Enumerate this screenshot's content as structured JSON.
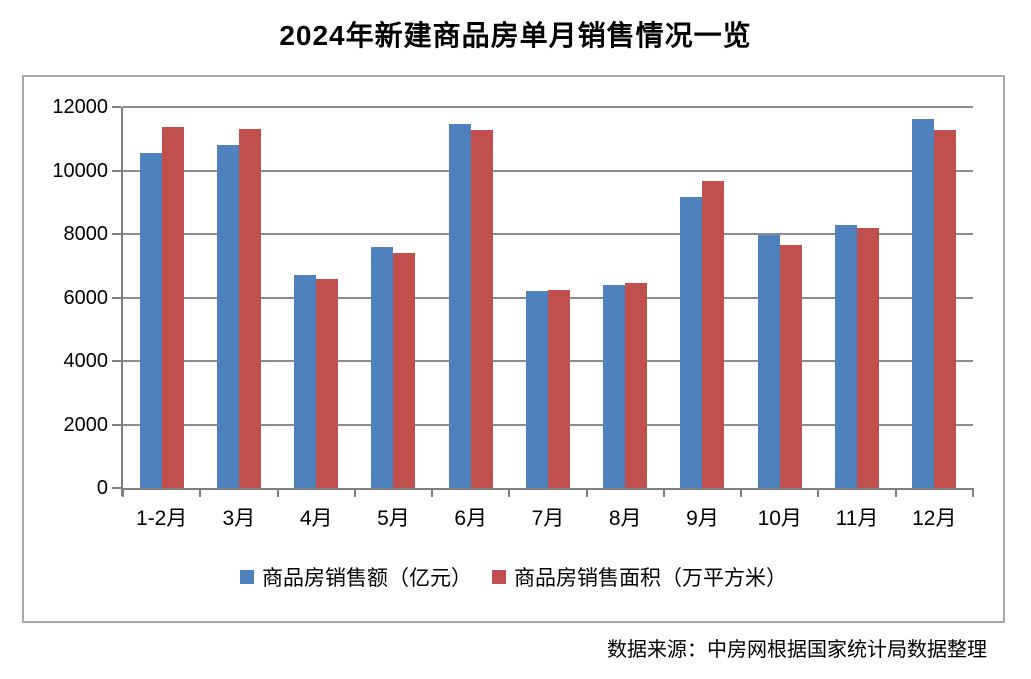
{
  "title": "2024年新建商品房单月销售情况一览",
  "source_note": "数据来源：中房网根据国家统计局数据整理",
  "colors": {
    "series_sales_amount": "#4F81BD",
    "series_sales_area": "#C0504D",
    "gridline": "#8C8C8C",
    "axis": "#7F7F7F",
    "chart_border": "#A9A9A9",
    "title_text": "#000000"
  },
  "chart_data": {
    "type": "bar",
    "categories": [
      "1-2月",
      "3月",
      "4月",
      "5月",
      "6月",
      "7月",
      "8月",
      "9月",
      "10月",
      "11月",
      "12月"
    ],
    "series": [
      {
        "name": "商品房销售额（亿元）",
        "key": "sales-amount",
        "color": "#4F81BD",
        "values": [
          10566,
          10789,
          6712,
          7598,
          11468,
          6197,
          6393,
          9157,
          7975,
          8270,
          11625
        ]
      },
      {
        "name": "商品房销售面积（万平方米）",
        "key": "sales-area",
        "color": "#C0504D",
        "values": [
          11369,
          11299,
          6584,
          7390,
          11274,
          6233,
          6453,
          9682,
          7646,
          8188,
          11267
        ]
      }
    ],
    "title": "2024年新建商品房单月销售情况一览",
    "xlabel": "",
    "ylabel": "",
    "ylim": [
      0,
      12000
    ],
    "yticks": [
      0,
      2000,
      4000,
      6000,
      8000,
      10000,
      12000
    ],
    "grid": true,
    "legend_position": "bottom"
  }
}
